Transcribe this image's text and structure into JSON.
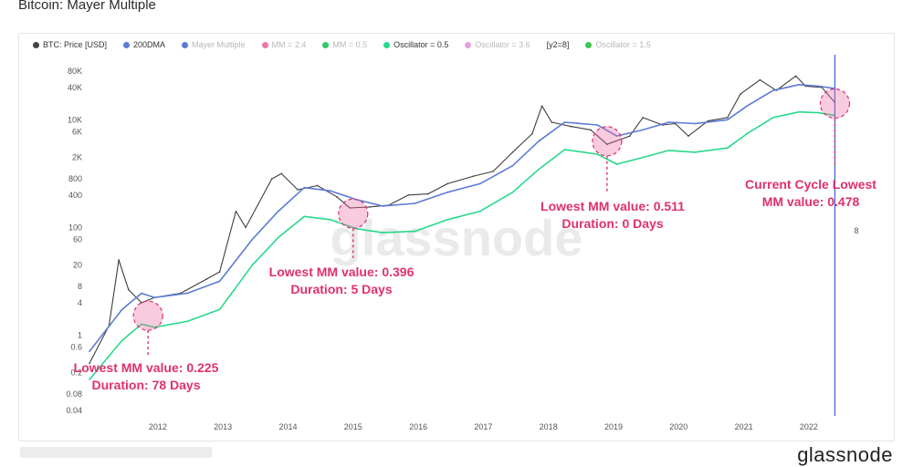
{
  "page": {
    "title": "Bitcoin: Mayer Multiple",
    "brand": "glassnode",
    "watermark": "glassnode"
  },
  "legend": [
    {
      "label": "BTC: Price [USD]",
      "color": "#444444",
      "active": true
    },
    {
      "label": "200DMA",
      "color": "#5b7bd5",
      "active": true
    },
    {
      "label": "Mayer Multiple",
      "color": "#5b7bd5",
      "active": false
    },
    {
      "label": "MM = 2.4",
      "color": "#e97aa8",
      "active": false
    },
    {
      "label": "MM = 0.5",
      "color": "#2fc96b",
      "active": false
    },
    {
      "label": "Oscillator = 0.5",
      "color": "#27d98a",
      "active": true
    },
    {
      "label": "Oscillator = 3.6",
      "color": "#e7a0d6",
      "active": false
    },
    {
      "label": "[y2=8]",
      "color": "",
      "active": true
    },
    {
      "label": "Oscillator = 1.5",
      "color": "#3cc84a",
      "active": false
    }
  ],
  "chart_data": {
    "type": "line",
    "title": "Bitcoin: Mayer Multiple",
    "y_scale": "log",
    "ylim": [
      0.04,
      80000
    ],
    "y_ticks": [
      "80K",
      "40K",
      "10K",
      "6K",
      "2K",
      "800",
      "400",
      "100",
      "60",
      "20",
      "8",
      "4",
      "1",
      "0.6",
      "0.2",
      "0.08",
      "0.04"
    ],
    "y_tick_values": [
      80000,
      40000,
      10000,
      6000,
      2000,
      800,
      400,
      100,
      60,
      20,
      8,
      4,
      1,
      0.6,
      0.2,
      0.08,
      0.04
    ],
    "x_ticks": [
      "2012",
      "2013",
      "2014",
      "2015",
      "2016",
      "2017",
      "2018",
      "2019",
      "2020",
      "2021",
      "2022"
    ],
    "xlim": [
      2011.0,
      2022.5
    ],
    "y2_label": "8",
    "series": [
      {
        "name": "BTC: Price [USD]",
        "color": "#3d3d3d",
        "x": [
          2011.0,
          2011.3,
          2011.45,
          2011.6,
          2011.8,
          2012.0,
          2012.4,
          2012.8,
          2013.0,
          2013.25,
          2013.4,
          2013.8,
          2013.95,
          2014.2,
          2014.5,
          2014.8,
          2015.0,
          2015.3,
          2015.6,
          2015.9,
          2016.2,
          2016.5,
          2016.9,
          2017.2,
          2017.5,
          2017.8,
          2017.95,
          2018.1,
          2018.4,
          2018.7,
          2018.95,
          2019.3,
          2019.5,
          2019.8,
          2020.0,
          2020.2,
          2020.5,
          2020.8,
          2021.0,
          2021.3,
          2021.55,
          2021.85,
          2022.0,
          2022.25,
          2022.45
        ],
        "y": [
          0.3,
          1.5,
          25,
          7,
          4,
          5,
          6,
          11,
          15,
          200,
          100,
          800,
          1000,
          500,
          600,
          370,
          230,
          240,
          260,
          400,
          420,
          650,
          900,
          1100,
          2500,
          5500,
          18000,
          9000,
          7500,
          6500,
          3500,
          5000,
          11000,
          8000,
          8500,
          5000,
          9500,
          11000,
          30000,
          55000,
          35000,
          65000,
          42000,
          40000,
          21000
        ]
      },
      {
        "name": "200DMA",
        "color": "#5b7bd5",
        "x": [
          2011.0,
          2011.5,
          2011.8,
          2012.0,
          2012.5,
          2013.0,
          2013.5,
          2013.9,
          2014.3,
          2014.7,
          2015.1,
          2015.5,
          2016.0,
          2016.5,
          2017.0,
          2017.5,
          2017.9,
          2018.3,
          2018.8,
          2019.1,
          2019.5,
          2019.9,
          2020.3,
          2020.8,
          2021.1,
          2021.5,
          2021.9,
          2022.2,
          2022.45
        ],
        "y": [
          0.5,
          3,
          6,
          5,
          6,
          10,
          60,
          200,
          550,
          480,
          330,
          250,
          280,
          450,
          650,
          1400,
          4000,
          9000,
          8000,
          5000,
          6500,
          9000,
          8500,
          10000,
          18000,
          35000,
          45000,
          42000,
          38000
        ]
      },
      {
        "name": "Oscillator = 0.5",
        "color": "#27d98a",
        "x": [
          2011.0,
          2011.5,
          2011.8,
          2012.0,
          2012.5,
          2013.0,
          2013.5,
          2013.9,
          2014.3,
          2014.7,
          2015.1,
          2015.5,
          2016.0,
          2016.5,
          2017.0,
          2017.5,
          2017.9,
          2018.3,
          2018.8,
          2019.1,
          2019.5,
          2019.9,
          2020.3,
          2020.8,
          2021.1,
          2021.5,
          2021.9,
          2022.2,
          2022.45
        ],
        "y": [
          0.15,
          0.8,
          1.6,
          1.4,
          1.8,
          3,
          20,
          65,
          160,
          140,
          95,
          80,
          85,
          140,
          200,
          450,
          1200,
          2800,
          2300,
          1500,
          2000,
          2700,
          2500,
          3000,
          5500,
          11000,
          14000,
          13500,
          12000
        ]
      }
    ],
    "annotations": [
      {
        "line1": "Lowest MM value: 0.225",
        "line2": "Duration: 78 Days",
        "x": 2011.9,
        "y": 2.3
      },
      {
        "line1": "Lowest MM value: 0.396",
        "line2": "Duration: 5 Days",
        "x": 2015.05,
        "y": 180
      },
      {
        "line1": "Lowest MM value: 0.511",
        "line2": "Duration: 0 Days",
        "x": 2018.95,
        "y": 4000
      },
      {
        "line1": "Current Cycle Lowest",
        "line2": "MM value: 0.478",
        "x": 2022.45,
        "y": 20000
      }
    ],
    "marker_line_x": 2022.45
  }
}
